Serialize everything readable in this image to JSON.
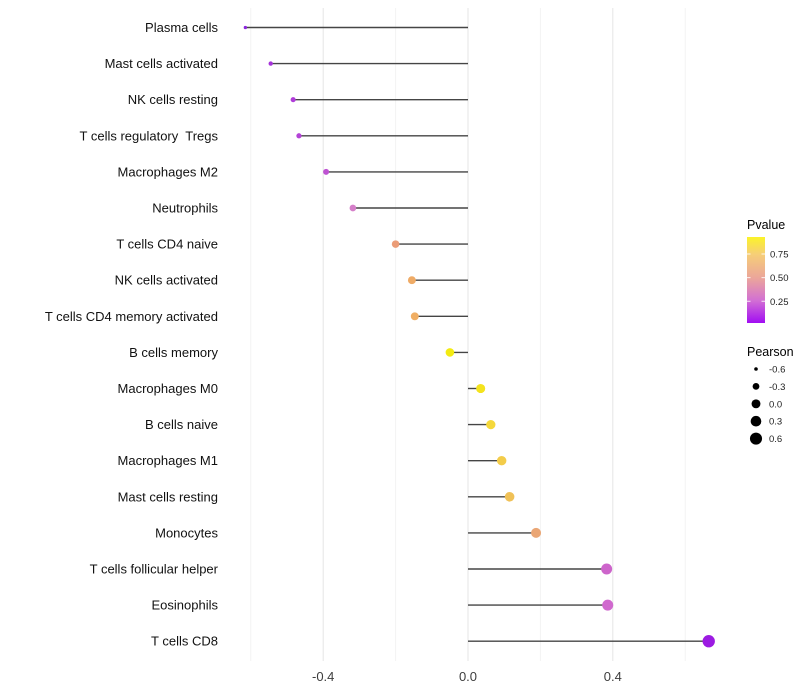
{
  "chart_data": {
    "type": "scatter",
    "variant": "lollipop",
    "title": "",
    "xlabel": "",
    "ylabel": "",
    "points": [
      {
        "label": "Plasma cells",
        "pearson": -0.615,
        "color": "#8B27DC"
      },
      {
        "label": "Mast cells activated",
        "pearson": -0.545,
        "color": "#A532DA"
      },
      {
        "label": "NK cells resting",
        "pearson": -0.483,
        "color": "#B03CD9"
      },
      {
        "label": "T cells regulatory  Tregs",
        "pearson": -0.467,
        "color": "#B443D7"
      },
      {
        "label": "Macrophages M2",
        "pearson": -0.392,
        "color": "#BE53D2"
      },
      {
        "label": "Neutrophils",
        "pearson": -0.318,
        "color": "#D57FC9"
      },
      {
        "label": "T cells CD4 naive",
        "pearson": -0.2,
        "color": "#EB9C77"
      },
      {
        "label": "NK cells activated",
        "pearson": -0.155,
        "color": "#EFAB66"
      },
      {
        "label": "T cells CD4 memory activated",
        "pearson": -0.147,
        "color": "#F0AE63"
      },
      {
        "label": "B cells memory",
        "pearson": -0.05,
        "color": "#F3EB12"
      },
      {
        "label": "Macrophages M0",
        "pearson": 0.035,
        "color": "#F4E31D"
      },
      {
        "label": "B cells naive",
        "pearson": 0.063,
        "color": "#F5D83B"
      },
      {
        "label": "Macrophages M1",
        "pearson": 0.093,
        "color": "#F3CC4A"
      },
      {
        "label": "Mast cells resting",
        "pearson": 0.115,
        "color": "#F0C157"
      },
      {
        "label": "Monocytes",
        "pearson": 0.188,
        "color": "#EAA675"
      },
      {
        "label": "T cells follicular helper",
        "pearson": 0.383,
        "color": "#CD65CB"
      },
      {
        "label": "Eosinophils",
        "pearson": 0.386,
        "color": "#D069CE"
      },
      {
        "label": "T cells CD8",
        "pearson": 0.665,
        "color": "#9C1BE2"
      }
    ],
    "x_axis": {
      "tick_labels": [
        "-0.4",
        "0.0",
        "0.4"
      ],
      "tick_values": [
        -0.4,
        0.0,
        0.4
      ],
      "minor_tick_values": [
        -0.6,
        -0.2,
        0.2,
        0.6
      ],
      "range": [
        -0.675,
        0.73
      ],
      "grid": true
    },
    "legends": {
      "pvalue": {
        "title": "Pvalue",
        "bar_value_top": 0.93,
        "bar_value_bottom": 0.02,
        "ticks": [
          {
            "label": "0.75",
            "value": 0.75
          },
          {
            "label": "0.50",
            "value": 0.5
          },
          {
            "label": "0.25",
            "value": 0.25
          }
        ],
        "gradient": [
          {
            "offset": 0.0,
            "color": "#FBF329"
          },
          {
            "offset": 0.2,
            "color": "#F6CE77"
          },
          {
            "offset": 0.48,
            "color": "#EBA59B"
          },
          {
            "offset": 0.74,
            "color": "#D26FD4"
          },
          {
            "offset": 1.0,
            "color": "#A10EF2"
          }
        ]
      },
      "pearson": {
        "title": "Pearson",
        "items": [
          {
            "label": "-0.6",
            "value": -0.6
          },
          {
            "label": "-0.3",
            "value": -0.3
          },
          {
            "label": "0.0",
            "value": 0.0
          },
          {
            "label": "0.3",
            "value": 0.3
          },
          {
            "label": "0.6",
            "value": 0.6
          }
        ]
      }
    },
    "colors": {
      "stem": "#454545",
      "grid_major": "#e5e5e5",
      "grid_minor": "#f3f3f3",
      "legend_dot": "#000000"
    }
  }
}
